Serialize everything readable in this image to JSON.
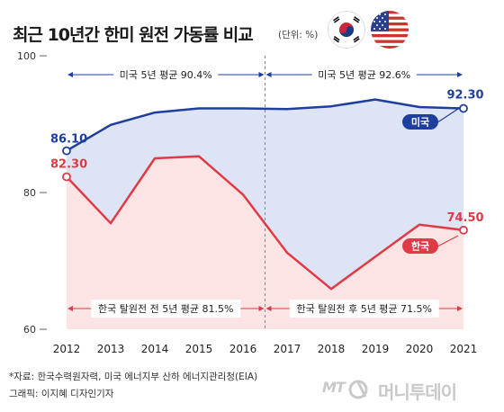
{
  "header": {
    "title": "최근 10년간 한미 원전 가동률 비교",
    "unit": "(단위: %)"
  },
  "flags": {
    "left": "korea-flag-icon",
    "right": "usa-flag-icon"
  },
  "footer": {
    "source": "*자료: 한국수력원자력, 미국 에너지부 산하 에너지관리청(EIA)",
    "credit": "그래픽: 이지혜 디자인기자"
  },
  "brand": {
    "mark": "MT",
    "name": "머니투데이"
  },
  "chart_data": {
    "type": "line",
    "x": [
      2012,
      2013,
      2014,
      2015,
      2016,
      2017,
      2018,
      2019,
      2020,
      2021
    ],
    "xlabel": "",
    "ylabel": "",
    "ylim": [
      60,
      100
    ],
    "yticks": [
      60,
      80,
      100
    ],
    "grid": false,
    "series": [
      {
        "name": "미국",
        "color": "#1f3f9f",
        "fill": "#dde4f5",
        "values": [
          86.1,
          89.9,
          91.7,
          92.3,
          92.3,
          92.2,
          92.6,
          93.6,
          92.5,
          92.3
        ],
        "labels": {
          "first": "86.10",
          "last": "92.30"
        }
      },
      {
        "name": "한국",
        "color": "#e03a47",
        "fill": "#fce4e4",
        "values": [
          82.3,
          75.5,
          85.0,
          85.3,
          79.7,
          71.2,
          65.9,
          70.6,
          75.3,
          74.5
        ],
        "labels": {
          "first": "82.30",
          "last": "74.50"
        }
      }
    ],
    "annotations": {
      "us_avg_before": "미국 5년 평균 90.4%",
      "us_avg_after": "미국 5년 평균 92.6%",
      "kr_avg_before": "한국 탈원전 전 5년 평균 81.5%",
      "kr_avg_after": "한국 탈원전 후 5년 평균 71.5%"
    },
    "divider_between": [
      2016,
      2017
    ]
  }
}
